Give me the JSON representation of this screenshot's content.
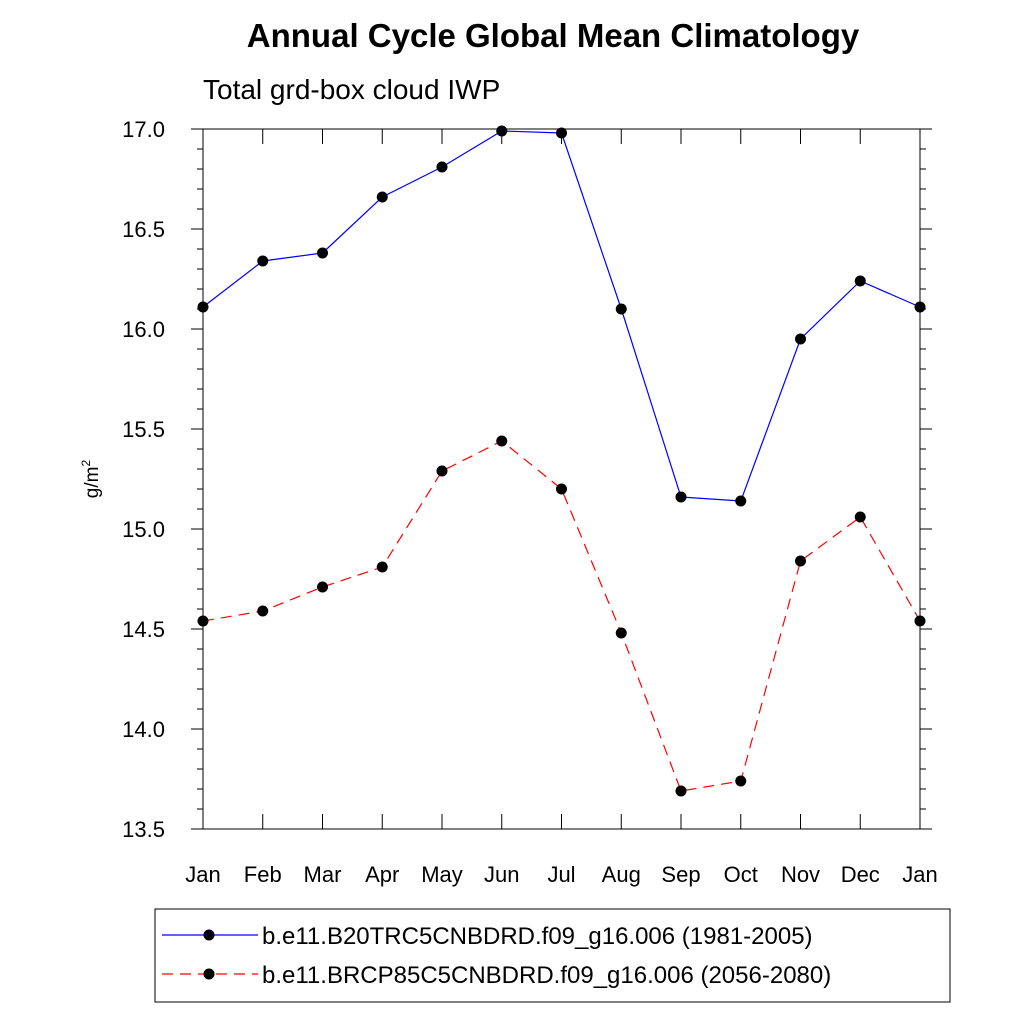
{
  "chart_data": {
    "type": "line",
    "title": "Annual Cycle Global Mean Climatology",
    "subtitle": "Total grd-box cloud IWP",
    "xlabel": "",
    "ylabel": "g/m",
    "ylabel_superscript": "2",
    "categories": [
      "Jan",
      "Feb",
      "Mar",
      "Apr",
      "May",
      "Jun",
      "Jul",
      "Aug",
      "Sep",
      "Oct",
      "Nov",
      "Dec",
      "Jan"
    ],
    "ylim": [
      13.5,
      17.0
    ],
    "yticks": [
      13.5,
      14.0,
      14.5,
      15.0,
      15.5,
      16.0,
      16.5,
      17.0
    ],
    "ytick_labels": [
      "13.5",
      "14.0",
      "14.5",
      "15.0",
      "15.5",
      "16.0",
      "16.5",
      "17.0"
    ],
    "grid": false,
    "legend_position": "bottom",
    "series": [
      {
        "name": "b.e11.B20TRC5CNBDRD.f09_g16.006 (1981-2005)",
        "color": "#0000ff",
        "line_style": "solid",
        "marker": "circle",
        "values": [
          16.11,
          16.34,
          16.38,
          16.66,
          16.81,
          16.99,
          16.98,
          16.1,
          15.16,
          15.14,
          15.95,
          16.24,
          16.11
        ]
      },
      {
        "name": "b.e11.BRCP85C5CNBDRD.f09_g16.006 (2056-2080)",
        "color": "#ff0000",
        "line_style": "dashed",
        "marker": "circle",
        "values": [
          14.54,
          14.59,
          14.71,
          14.81,
          15.29,
          15.44,
          15.2,
          14.48,
          13.69,
          13.74,
          14.84,
          15.06,
          14.54
        ]
      }
    ]
  }
}
